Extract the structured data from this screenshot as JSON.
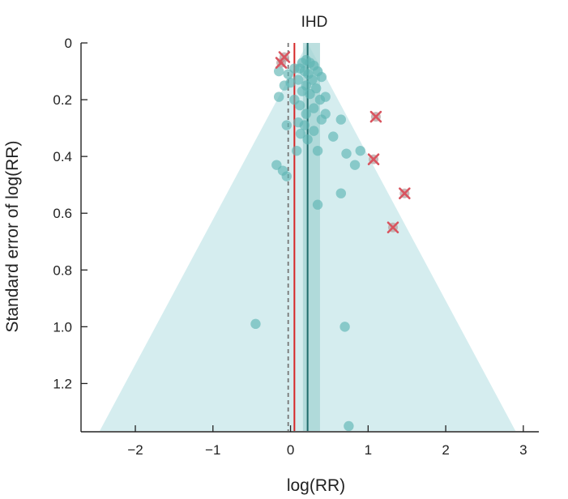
{
  "chart_data": {
    "type": "scatter",
    "title": "IHD",
    "xlabel": "log(RR)",
    "ylabel": "Standard error of log(RR)",
    "xlim": [
      -2.7,
      3.2
    ],
    "ylim": [
      0,
      1.37
    ],
    "y_inverted": true,
    "x_ticks": [
      {
        "value": -2,
        "label": "−2"
      },
      {
        "value": -1,
        "label": "−1"
      },
      {
        "value": 0,
        "label": "0"
      },
      {
        "value": 1,
        "label": "1"
      },
      {
        "value": 2,
        "label": "2"
      },
      {
        "value": 3,
        "label": "3"
      }
    ],
    "y_ticks": [
      {
        "value": 0,
        "label": "0"
      },
      {
        "value": 0.2,
        "label": "0.2"
      },
      {
        "value": 0.4,
        "label": "0.4"
      },
      {
        "value": 0.6,
        "label": "0.6"
      },
      {
        "value": 0.8,
        "label": "0.8"
      },
      {
        "value": 1.0,
        "label": "1.0"
      },
      {
        "value": 1.2,
        "label": "1.2"
      }
    ],
    "funnel": {
      "center": 0.22,
      "color": "#d5edef"
    },
    "pooled_estimate": {
      "value": 0.22,
      "ci": [
        0.16,
        0.38
      ],
      "color": "#1f6b6b",
      "band_color": "#9fd2d2"
    },
    "adjusted_estimate": {
      "value": 0.05,
      "color": "#d62728"
    },
    "null_line": {
      "value": -0.03,
      "color": "#777777"
    },
    "colors": {
      "studies": "#5fb6b4",
      "trimmed": "#d9545f"
    },
    "studies": [
      [
        0.15,
        0.07
      ],
      [
        0.2,
        0.06
      ],
      [
        0.25,
        0.07
      ],
      [
        0.3,
        0.08
      ],
      [
        0.12,
        0.09
      ],
      [
        0.18,
        0.1
      ],
      [
        0.23,
        0.11
      ],
      [
        -0.15,
        0.1
      ],
      [
        -0.03,
        0.11
      ],
      [
        0.05,
        0.09
      ],
      [
        0.35,
        0.1
      ],
      [
        0.4,
        0.12
      ],
      [
        0.28,
        0.13
      ],
      [
        0.0,
        0.14
      ],
      [
        0.1,
        0.13
      ],
      [
        0.2,
        0.15
      ],
      [
        -0.08,
        0.15
      ],
      [
        0.33,
        0.16
      ],
      [
        0.15,
        0.17
      ],
      [
        0.25,
        0.18
      ],
      [
        0.45,
        0.19
      ],
      [
        0.38,
        0.2
      ],
      [
        0.05,
        0.2
      ],
      [
        -0.15,
        0.19
      ],
      [
        0.12,
        0.22
      ],
      [
        0.3,
        0.23
      ],
      [
        0.2,
        0.25
      ],
      [
        0.45,
        0.25
      ],
      [
        0.65,
        0.27
      ],
      [
        0.4,
        0.27
      ],
      [
        0.1,
        0.28
      ],
      [
        0.18,
        0.29
      ],
      [
        -0.05,
        0.29
      ],
      [
        0.3,
        0.31
      ],
      [
        0.55,
        0.33
      ],
      [
        0.13,
        0.32
      ],
      [
        0.22,
        0.34
      ],
      [
        0.08,
        0.38
      ],
      [
        0.35,
        0.38
      ],
      [
        0.9,
        0.38
      ],
      [
        0.72,
        0.39
      ],
      [
        0.83,
        0.43
      ],
      [
        -0.18,
        0.43
      ],
      [
        -0.1,
        0.45
      ],
      [
        -0.05,
        0.47
      ],
      [
        0.65,
        0.53
      ],
      [
        0.35,
        0.57
      ],
      [
        -0.45,
        0.99
      ],
      [
        0.7,
        1.0
      ],
      [
        0.75,
        1.35
      ]
    ],
    "trimmed_studies": [
      [
        -0.12,
        0.07
      ],
      [
        -0.08,
        0.05
      ],
      [
        1.1,
        0.26
      ],
      [
        1.07,
        0.41
      ],
      [
        1.47,
        0.53
      ],
      [
        1.32,
        0.65
      ]
    ]
  }
}
